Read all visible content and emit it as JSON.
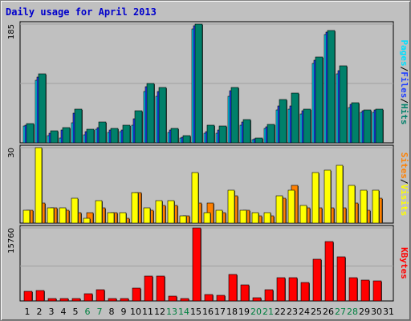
{
  "chart_data": {
    "type": "bar",
    "title": "Daily usage for April 2013",
    "categories": [
      "1",
      "2",
      "3",
      "4",
      "5",
      "6",
      "7",
      "8",
      "9",
      "10",
      "11",
      "12",
      "13",
      "14",
      "15",
      "16",
      "17",
      "18",
      "19",
      "20",
      "21",
      "22",
      "23",
      "24",
      "25",
      "26",
      "27",
      "28",
      "29",
      "30",
      "31"
    ],
    "weekend_days": [
      "6",
      "7",
      "13",
      "14",
      "20",
      "21",
      "27",
      "28"
    ],
    "panels": [
      {
        "id": "top",
        "max_label": "185",
        "ylim": [
          0,
          185
        ],
        "right_labels": [
          "Pages",
          "Files",
          "Hits"
        ],
        "series": [
          {
            "name": "Pages",
            "color": "#00e0ff",
            "values": [
              26,
              97,
              11,
              8,
              31,
              13,
              21,
              16,
              17,
              28,
              80,
              73,
              16,
              8,
              178,
              15,
              15,
              73,
              28,
              5,
              22,
              51,
              52,
              45,
              124,
              169,
              107,
              55,
              47,
              48,
              0
            ]
          },
          {
            "name": "Files",
            "color": "#2040ff",
            "values": [
              28,
              102,
              15,
              20,
              46,
              18,
              24,
              20,
              20,
              37,
              88,
              80,
              20,
              9,
              182,
              18,
              20,
              81,
              33,
              6,
              25,
              58,
              58,
              50,
              129,
              173,
              113,
              60,
              50,
              51,
              0
            ]
          },
          {
            "name": "Hits",
            "color": "#00806a",
            "values": [
              30,
              108,
              19,
              24,
              52,
              21,
              32,
              22,
              28,
              50,
              93,
              86,
              22,
              11,
              185,
              28,
              26,
              86,
              36,
              8,
              29,
              67,
              77,
              52,
              134,
              175,
              120,
              62,
              51,
              53,
              0
            ]
          }
        ]
      },
      {
        "id": "middle",
        "max_label": "30",
        "ylim": [
          0,
          30
        ],
        "right_labels": [
          "Sites",
          "Visits"
        ],
        "series": [
          {
            "name": "Sites",
            "color": "#ff8000",
            "values": [
              5,
              8,
              6,
              5,
              4,
              4,
              6,
              4,
              2,
              12,
              5,
              7,
              7,
              3,
              8,
              8,
              4,
              11,
              5,
              3,
              3,
              10,
              15,
              6,
              6,
              6,
              6,
              8,
              5,
              10,
              0
            ]
          },
          {
            "name": "Visits",
            "color": "#ffff00",
            "values": [
              5,
              30,
              6,
              6,
              10,
              2,
              9,
              4,
              4,
              12,
              6,
              9,
              9,
              3,
              20,
              4,
              5,
              13,
              5,
              4,
              4,
              11,
              13,
              7,
              20,
              21,
              23,
              15,
              13,
              13,
              0
            ]
          }
        ]
      },
      {
        "id": "bottom",
        "max_label": "15760",
        "ylim": [
          0,
          15760
        ],
        "right_labels": [
          "KBytes"
        ],
        "series": [
          {
            "name": "KBytes",
            "color": "#ff0000",
            "values": [
              2100,
              2300,
              500,
              500,
              600,
              1500,
              2500,
              500,
              500,
              2700,
              5300,
              5300,
              1000,
              600,
              15760,
              1300,
              1200,
              5700,
              3400,
              700,
              2500,
              5100,
              5000,
              4000,
              9000,
              12800,
              9500,
              5000,
              4500,
              4300,
              0
            ]
          }
        ]
      }
    ],
    "colors": {
      "Pages": "#00e0ff",
      "Files": "#2040ff",
      "Hits": "#00806a",
      "Sites": "#ff8000",
      "Visits": "#ffff00",
      "KBytes": "#ff0000",
      "title": "#0000cc",
      "weekend_tick": "#008040"
    }
  }
}
